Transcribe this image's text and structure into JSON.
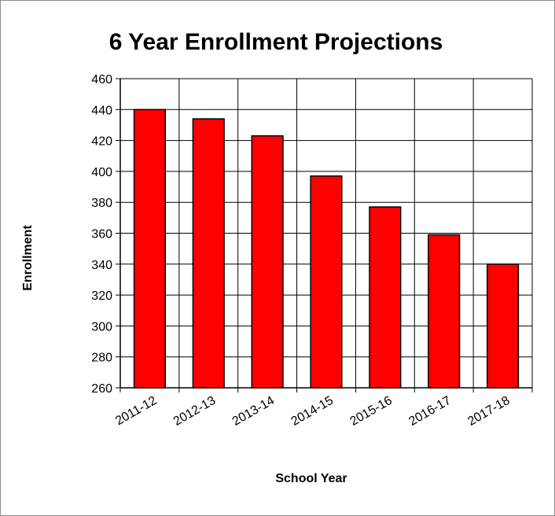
{
  "chart_data": {
    "type": "bar",
    "title": "6 Year Enrollment Projections",
    "xlabel": "School Year",
    "ylabel": "Enrollment",
    "categories": [
      "2011-12",
      "2012-13",
      "2013-14",
      "2014-15",
      "2015-16",
      "2016-17",
      "2017-18"
    ],
    "values": [
      440,
      434,
      423,
      397,
      377,
      359,
      340
    ],
    "ylim": [
      260,
      460
    ],
    "yticks": [
      260,
      280,
      300,
      320,
      340,
      360,
      380,
      400,
      420,
      440,
      460
    ],
    "grid": true,
    "legend": "none",
    "bar_color": "#ff0000",
    "bar_edge_color": "#000000",
    "gridline_color": "#000000"
  }
}
